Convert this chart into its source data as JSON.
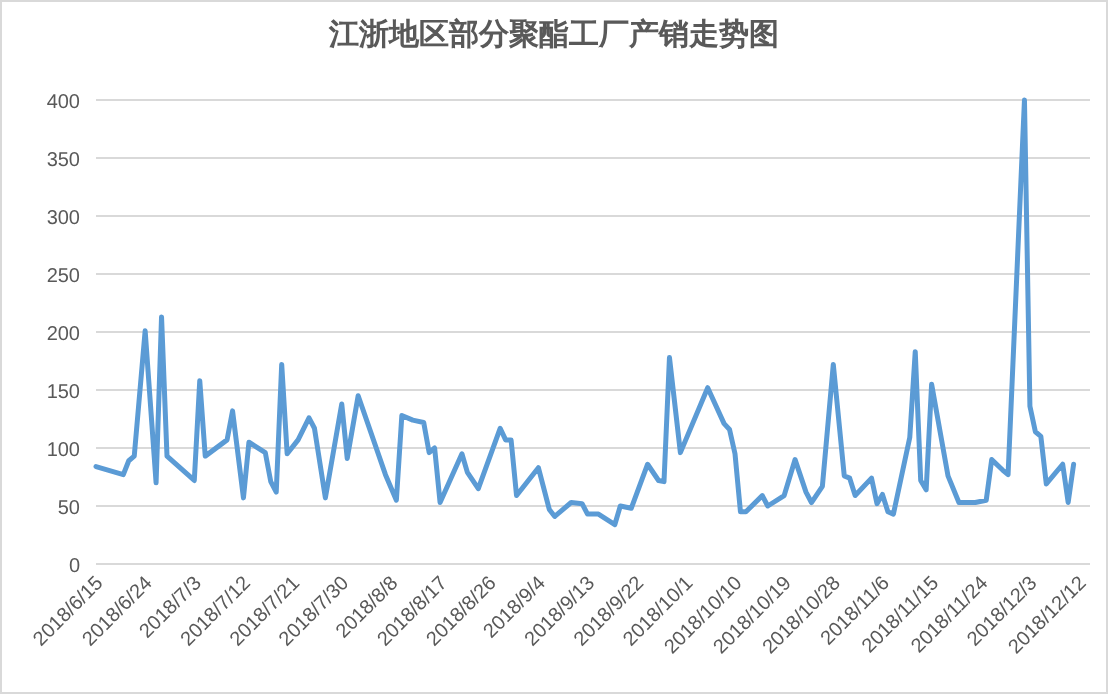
{
  "chart_data": {
    "type": "line",
    "title": "江浙地区部分聚酯工厂产销走势图",
    "x": [
      "2018-06-15",
      "2018-06-20",
      "2018-06-21",
      "2018-06-22",
      "2018-06-24",
      "2018-06-26",
      "2018-06-27",
      "2018-06-28",
      "2018-07-03",
      "2018-07-04",
      "2018-07-05",
      "2018-07-09",
      "2018-07-10",
      "2018-07-12",
      "2018-07-13",
      "2018-07-16",
      "2018-07-17",
      "2018-07-18",
      "2018-07-19",
      "2018-07-20",
      "2018-07-22",
      "2018-07-24",
      "2018-07-25",
      "2018-07-27",
      "2018-07-30",
      "2018-07-31",
      "2018-08-02",
      "2018-08-07",
      "2018-08-09",
      "2018-08-10",
      "2018-08-12",
      "2018-08-14",
      "2018-08-15",
      "2018-08-16",
      "2018-08-17",
      "2018-08-21",
      "2018-08-22",
      "2018-08-24",
      "2018-08-28",
      "2018-08-29",
      "2018-08-30",
      "2018-08-31",
      "2018-09-04",
      "2018-09-06",
      "2018-09-07",
      "2018-09-10",
      "2018-09-12",
      "2018-09-13",
      "2018-09-15",
      "2018-09-18",
      "2018-09-19",
      "2018-09-21",
      "2018-09-24",
      "2018-09-26",
      "2018-09-27",
      "2018-09-28",
      "2018-09-30",
      "2018-10-05",
      "2018-10-08",
      "2018-10-09",
      "2018-10-10",
      "2018-10-11",
      "2018-10-12",
      "2018-10-15",
      "2018-10-16",
      "2018-10-19",
      "2018-10-21",
      "2018-10-23",
      "2018-10-24",
      "2018-10-26",
      "2018-10-28",
      "2018-10-30",
      "2018-10-31",
      "2018-11-01",
      "2018-11-04",
      "2018-11-05",
      "2018-11-06",
      "2018-11-07",
      "2018-11-08",
      "2018-11-11",
      "2018-11-12",
      "2018-11-13",
      "2018-11-14",
      "2018-11-15",
      "2018-11-18",
      "2018-11-20",
      "2018-11-23",
      "2018-11-25",
      "2018-11-26",
      "2018-11-28",
      "2018-11-29",
      "2018-12-02",
      "2018-12-03",
      "2018-12-04",
      "2018-12-05",
      "2018-12-06",
      "2018-12-09",
      "2018-12-10",
      "2018-12-11"
    ],
    "series": [
      {
        "color": "#5b9bd5",
        "values": [
          84,
          77,
          89,
          93,
          201,
          70,
          213,
          93,
          72,
          158,
          93,
          107,
          132,
          57,
          105,
          96,
          71,
          62,
          172,
          95,
          107,
          126,
          117,
          57,
          138,
          91,
          145,
          77,
          55,
          128,
          124,
          122,
          96,
          100,
          53,
          95,
          79,
          65,
          117,
          107,
          107,
          59,
          83,
          47,
          41,
          53,
          52,
          43,
          43,
          34,
          50,
          48,
          86,
          72,
          71,
          178,
          96,
          152,
          121,
          116,
          95,
          45,
          45,
          59,
          50,
          59,
          90,
          62,
          53,
          67,
          172,
          76,
          74,
          59,
          74,
          52,
          60,
          45,
          43,
          109,
          183,
          72,
          64,
          155,
          76,
          53,
          53,
          55,
          90,
          81,
          77,
          400,
          136,
          114,
          110,
          69,
          86,
          53,
          86
        ]
      }
    ],
    "xlim": [
      "2018-06-15",
      "2018-12-14"
    ],
    "xticks": [
      {
        "value": "2018-06-15",
        "label": "2018/6/15"
      },
      {
        "value": "2018-06-24",
        "label": "2018/6/24"
      },
      {
        "value": "2018-07-03",
        "label": "2018/7/3"
      },
      {
        "value": "2018-07-12",
        "label": "2018/7/12"
      },
      {
        "value": "2018-07-21",
        "label": "2018/7/21"
      },
      {
        "value": "2018-07-30",
        "label": "2018/7/30"
      },
      {
        "value": "2018-08-08",
        "label": "2018/8/8"
      },
      {
        "value": "2018-08-17",
        "label": "2018/8/17"
      },
      {
        "value": "2018-08-26",
        "label": "2018/8/26"
      },
      {
        "value": "2018-09-04",
        "label": "2018/9/4"
      },
      {
        "value": "2018-09-13",
        "label": "2018/9/13"
      },
      {
        "value": "2018-09-22",
        "label": "2018/9/22"
      },
      {
        "value": "2018-10-01",
        "label": "2018/10/1"
      },
      {
        "value": "2018-10-10",
        "label": "2018/10/10"
      },
      {
        "value": "2018-10-19",
        "label": "2018/10/19"
      },
      {
        "value": "2018-10-28",
        "label": "2018/10/28"
      },
      {
        "value": "2018-11-06",
        "label": "2018/11/6"
      },
      {
        "value": "2018-11-15",
        "label": "2018/11/15"
      },
      {
        "value": "2018-11-24",
        "label": "2018/11/24"
      },
      {
        "value": "2018-12-03",
        "label": "2018/12/3"
      },
      {
        "value": "2018-12-12",
        "label": "2018/12/12"
      }
    ],
    "ylim": [
      0,
      400
    ],
    "yticks": [
      0,
      50,
      100,
      150,
      200,
      250,
      300,
      350,
      400
    ],
    "grid": "y",
    "marker": "none",
    "line_style": "solid"
  }
}
